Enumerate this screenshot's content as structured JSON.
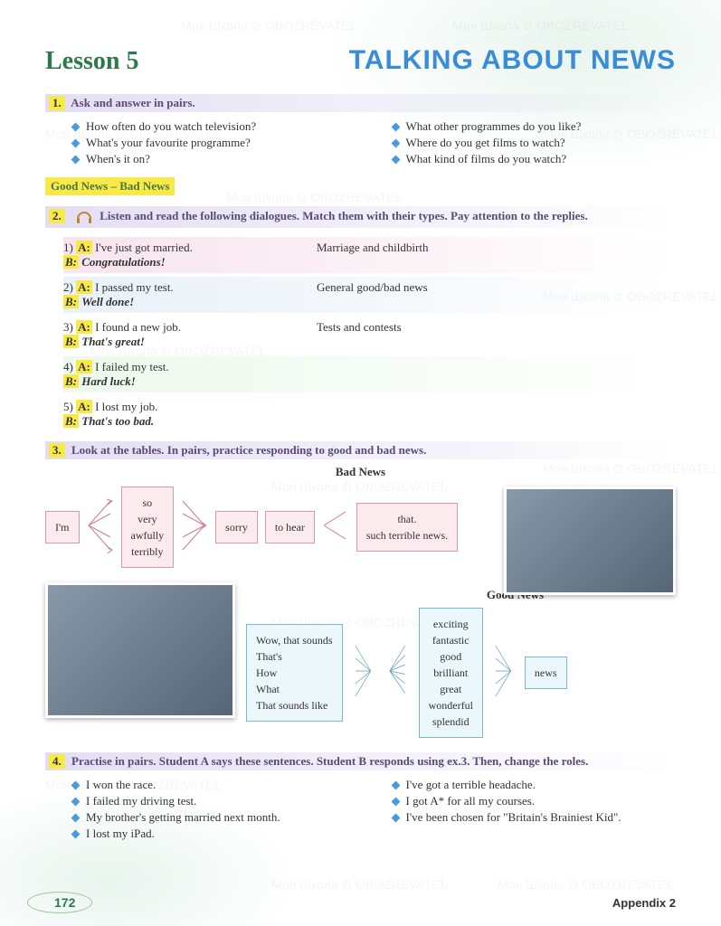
{
  "header": {
    "lesson": "Lesson 5",
    "title": "TALKING ABOUT NEWS"
  },
  "ex1": {
    "instruction": "Ask and answer in pairs.",
    "number": "1.",
    "left": [
      "How often do you watch television?",
      "What's your favourite programme?",
      "When's it on?"
    ],
    "right": [
      "What other programmes do you like?",
      "Where do you get films to watch?",
      "What kind of films do you watch?"
    ]
  },
  "section_label": "Good News – Bad News",
  "ex2": {
    "number": "2.",
    "instruction": "Listen and read the following dialogues. Match them with their types. Pay attention to the replies.",
    "items": [
      {
        "n": "1)",
        "a": "I've just got married.",
        "b": "Congratulations!",
        "type": "Marriage and childbirth",
        "bg": "bg-pink"
      },
      {
        "n": "2)",
        "a": "I passed my test.",
        "b": "Well done!",
        "type": "General good/bad news",
        "bg": "bg-blue"
      },
      {
        "n": "3)",
        "a": "I found a new job.",
        "b": "That's great!",
        "type": "Tests and contests",
        "bg": ""
      },
      {
        "n": "4)",
        "a": "I failed my test.",
        "b": "Hard luck!",
        "type": "",
        "bg": "bg-green"
      },
      {
        "n": "5)",
        "a": "I lost my job.",
        "b": "That's too bad.",
        "type": "",
        "bg": ""
      }
    ]
  },
  "ex3": {
    "number": "3.",
    "instruction": "Look at the tables. In pairs, practice responding to good and bad news.",
    "bad_title": "Bad News",
    "good_title": "Good News",
    "bad": {
      "box1": "I'm",
      "box2": "so\nvery\nawfully\nterribly",
      "box3": "sorry",
      "box4": "to hear",
      "box5": "that.\nsuch terrible news.",
      "box_color": "#d89aa8",
      "arrow_color": "#d07a98"
    },
    "good": {
      "box1": "Wow, that sounds\nThat's\nHow\nWhat\nThat sounds like",
      "box2": "exciting\nfantastic\ngood\nbrilliant\ngreat\nwonderful\nsplendid",
      "box3": "news",
      "box_color": "#7ab8d0",
      "arrow_color": "#5a9bc0"
    }
  },
  "ex4": {
    "number": "4.",
    "instruction": "Practise in pairs. Student A says these sentences. Student B responds using ex.3. Then, change the roles.",
    "left": [
      "I won the race.",
      "I failed my driving test.",
      "My brother's getting married next month.",
      "I lost my iPad."
    ],
    "right": [
      "I've got a terrible headache.",
      "I got A* for all my courses.",
      "I've been chosen for \"Britain's Brainiest Kid\"."
    ]
  },
  "footer": {
    "page": "172",
    "appendix": "Appendix 2"
  },
  "watermark_text": "Моя Школа ⊙ OBOZREVATEL"
}
